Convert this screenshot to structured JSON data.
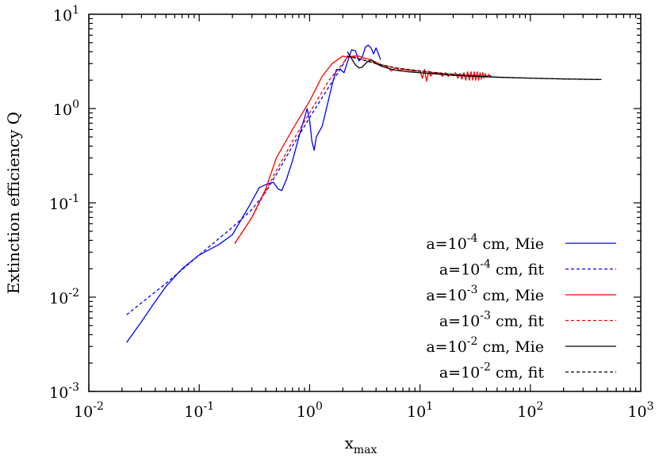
{
  "chart_data": {
    "type": "line",
    "xscale": "log",
    "yscale": "log",
    "xlim": [
      0.01,
      1000
    ],
    "ylim": [
      0.001,
      10
    ],
    "xlabel": {
      "base": "x",
      "sub": "max"
    },
    "ylabel": "Extinction efficiency Q",
    "x_ticks": [
      {
        "base": "10",
        "exp": "-2",
        "value": 0.01
      },
      {
        "base": "10",
        "exp": "-1",
        "value": 0.1
      },
      {
        "base": "10",
        "exp": "0",
        "value": 1
      },
      {
        "base": "10",
        "exp": "1",
        "value": 10
      },
      {
        "base": "10",
        "exp": "2",
        "value": 100
      },
      {
        "base": "10",
        "exp": "3",
        "value": 1000
      }
    ],
    "y_ticks": [
      {
        "base": "10",
        "exp": "-3",
        "value": 0.001
      },
      {
        "base": "10",
        "exp": "-2",
        "value": 0.01
      },
      {
        "base": "10",
        "exp": "-1",
        "value": 0.1
      },
      {
        "base": "10",
        "exp": "0",
        "value": 1
      },
      {
        "base": "10",
        "exp": "1",
        "value": 10
      }
    ],
    "legend_position": "bottom-right",
    "grid": false,
    "series": [
      {
        "name": "a=10-4 cm, Mie",
        "legend": {
          "pre": "a=10",
          "exp": "-4",
          "post": " cm, Mie"
        },
        "color": "#0000ff",
        "dash": "solid",
        "points": [
          [
            0.022,
            0.0033
          ],
          [
            0.03,
            0.0055
          ],
          [
            0.04,
            0.009
          ],
          [
            0.05,
            0.013
          ],
          [
            0.07,
            0.02
          ],
          [
            0.1,
            0.028
          ],
          [
            0.15,
            0.036
          ],
          [
            0.2,
            0.046
          ],
          [
            0.28,
            0.09
          ],
          [
            0.35,
            0.145
          ],
          [
            0.42,
            0.16
          ],
          [
            0.47,
            0.165
          ],
          [
            0.52,
            0.14
          ],
          [
            0.56,
            0.135
          ],
          [
            0.62,
            0.18
          ],
          [
            0.7,
            0.28
          ],
          [
            0.8,
            0.5
          ],
          [
            0.9,
            0.8
          ],
          [
            0.95,
            1.0
          ],
          [
            1.0,
            0.75
          ],
          [
            1.05,
            0.45
          ],
          [
            1.1,
            0.36
          ],
          [
            1.15,
            0.5
          ],
          [
            1.3,
            0.65
          ],
          [
            1.45,
            1.1
          ],
          [
            1.6,
            1.8
          ],
          [
            1.75,
            2.6
          ],
          [
            1.9,
            2.6
          ],
          [
            2.05,
            2.4
          ],
          [
            2.2,
            3.1
          ],
          [
            2.4,
            4.2
          ],
          [
            2.6,
            4.1
          ],
          [
            2.8,
            3.2
          ],
          [
            3.0,
            3.5
          ],
          [
            3.2,
            4.5
          ],
          [
            3.4,
            4.7
          ],
          [
            3.6,
            4.4
          ],
          [
            3.8,
            3.8
          ],
          [
            4.0,
            4.4
          ],
          [
            4.2,
            3.8
          ],
          [
            4.4,
            3.3
          ]
        ]
      },
      {
        "name": "a=10-4 cm, fit",
        "legend": {
          "pre": "a=10",
          "exp": "-4",
          "post": " cm, fit"
        },
        "color": "#0000ff",
        "dash": "dashed",
        "points": [
          [
            0.022,
            0.0065
          ],
          [
            0.05,
            0.014
          ],
          [
            0.1,
            0.028
          ],
          [
            0.2,
            0.055
          ],
          [
            0.3,
            0.085
          ],
          [
            0.4,
            0.13
          ],
          [
            0.5,
            0.2
          ],
          [
            0.7,
            0.4
          ],
          [
            1.0,
            0.8
          ],
          [
            1.4,
            1.5
          ],
          [
            2.0,
            2.9
          ],
          [
            2.2,
            3.6
          ],
          [
            2.5,
            3.5
          ],
          [
            3.0,
            3.3
          ],
          [
            4.0,
            3.0
          ],
          [
            4.4,
            2.9
          ]
        ]
      },
      {
        "name": "a=10-3 cm, Mie",
        "legend": {
          "pre": "a=10",
          "exp": "-3",
          "post": " cm, Mie"
        },
        "color": "#ff0000",
        "dash": "solid",
        "points": [
          [
            0.21,
            0.037
          ],
          [
            0.3,
            0.07
          ],
          [
            0.4,
            0.14
          ],
          [
            0.5,
            0.3
          ],
          [
            0.7,
            0.6
          ],
          [
            1.0,
            1.2
          ],
          [
            1.3,
            2.2
          ],
          [
            1.6,
            3.0
          ],
          [
            2.0,
            3.6
          ],
          [
            2.2,
            3.5
          ],
          [
            2.5,
            3.6
          ],
          [
            2.8,
            3.6
          ],
          [
            3.2,
            3.4
          ],
          [
            3.6,
            3.3
          ],
          [
            4.0,
            3.1
          ],
          [
            4.5,
            2.9
          ],
          [
            5.0,
            2.8
          ],
          [
            5.5,
            2.5
          ],
          [
            6.0,
            2.7
          ],
          [
            6.5,
            2.55
          ],
          [
            7.0,
            2.6
          ],
          [
            8.0,
            2.55
          ],
          [
            9.0,
            2.5
          ],
          [
            10.0,
            2.5
          ],
          [
            10.5,
            2.1
          ],
          [
            11.0,
            2.6
          ],
          [
            11.5,
            1.95
          ],
          [
            12.0,
            2.5
          ],
          [
            12.5,
            2.2
          ],
          [
            13.0,
            2.4
          ],
          [
            14.0,
            2.35
          ],
          [
            15.0,
            2.4
          ],
          [
            16.0,
            2.2
          ],
          [
            17.0,
            2.4
          ],
          [
            18.0,
            2.2
          ],
          [
            19.0,
            2.35
          ],
          [
            20.0,
            2.25
          ],
          [
            21.0,
            2.4
          ],
          [
            22.0,
            2.1
          ],
          [
            23.0,
            2.35
          ],
          [
            24.0,
            2.05
          ],
          [
            25.0,
            2.4
          ],
          [
            26.0,
            2.0
          ],
          [
            27.0,
            2.45
          ],
          [
            28.0,
            2.0
          ],
          [
            29.0,
            2.45
          ],
          [
            30.0,
            2.0
          ],
          [
            31.0,
            2.45
          ],
          [
            32.0,
            2.0
          ],
          [
            33.0,
            2.45
          ],
          [
            34.0,
            2.0
          ],
          [
            35.0,
            2.4
          ],
          [
            36.0,
            2.05
          ],
          [
            37.0,
            2.4
          ],
          [
            38.0,
            2.1
          ],
          [
            39.0,
            2.35
          ],
          [
            40.0,
            2.15
          ],
          [
            42.0,
            2.3
          ],
          [
            44.0,
            2.2
          ]
        ]
      },
      {
        "name": "a=10-3 cm, fit",
        "legend": {
          "pre": "a=10",
          "exp": "-3",
          "post": " cm, fit"
        },
        "color": "#ff0000",
        "dash": "dashed",
        "points": [
          [
            0.21,
            0.037
          ],
          [
            0.3,
            0.07
          ],
          [
            0.5,
            0.22
          ],
          [
            0.7,
            0.45
          ],
          [
            1.0,
            0.9
          ],
          [
            1.5,
            2.0
          ],
          [
            2.0,
            3.0
          ],
          [
            2.2,
            3.5
          ],
          [
            2.5,
            3.5
          ],
          [
            3.0,
            3.3
          ],
          [
            4.0,
            3.0
          ],
          [
            6.0,
            2.7
          ],
          [
            10.0,
            2.5
          ],
          [
            20.0,
            2.3
          ],
          [
            44.0,
            2.2
          ]
        ]
      },
      {
        "name": "a=10-2 cm, Mie",
        "legend": {
          "pre": "a=10",
          "exp": "-2",
          "post": " cm, Mie"
        },
        "color": "#000000",
        "dash": "solid",
        "points": [
          [
            2.2,
            4.0
          ],
          [
            2.4,
            3.4
          ],
          [
            2.6,
            2.9
          ],
          [
            2.8,
            2.7
          ],
          [
            3.0,
            2.75
          ],
          [
            3.3,
            3.1
          ],
          [
            3.6,
            3.3
          ],
          [
            4.0,
            3.0
          ],
          [
            4.5,
            2.8
          ],
          [
            5.0,
            2.7
          ],
          [
            6.0,
            2.55
          ],
          [
            8.0,
            2.45
          ],
          [
            10.0,
            2.4
          ],
          [
            20.0,
            2.25
          ],
          [
            50.0,
            2.15
          ],
          [
            100.0,
            2.1
          ],
          [
            200.0,
            2.06
          ],
          [
            440.0,
            2.03
          ]
        ]
      },
      {
        "name": "a=10-2 cm, fit",
        "legend": {
          "pre": "a=10",
          "exp": "-2",
          "post": " cm, fit"
        },
        "color": "#000000",
        "dash": "dashed",
        "points": [
          [
            2.2,
            3.6
          ],
          [
            3.0,
            3.3
          ],
          [
            4.0,
            3.0
          ],
          [
            6.0,
            2.7
          ],
          [
            10.0,
            2.5
          ],
          [
            20.0,
            2.3
          ],
          [
            50.0,
            2.15
          ],
          [
            100.0,
            2.1
          ],
          [
            200.0,
            2.06
          ],
          [
            440.0,
            2.03
          ]
        ]
      }
    ]
  }
}
